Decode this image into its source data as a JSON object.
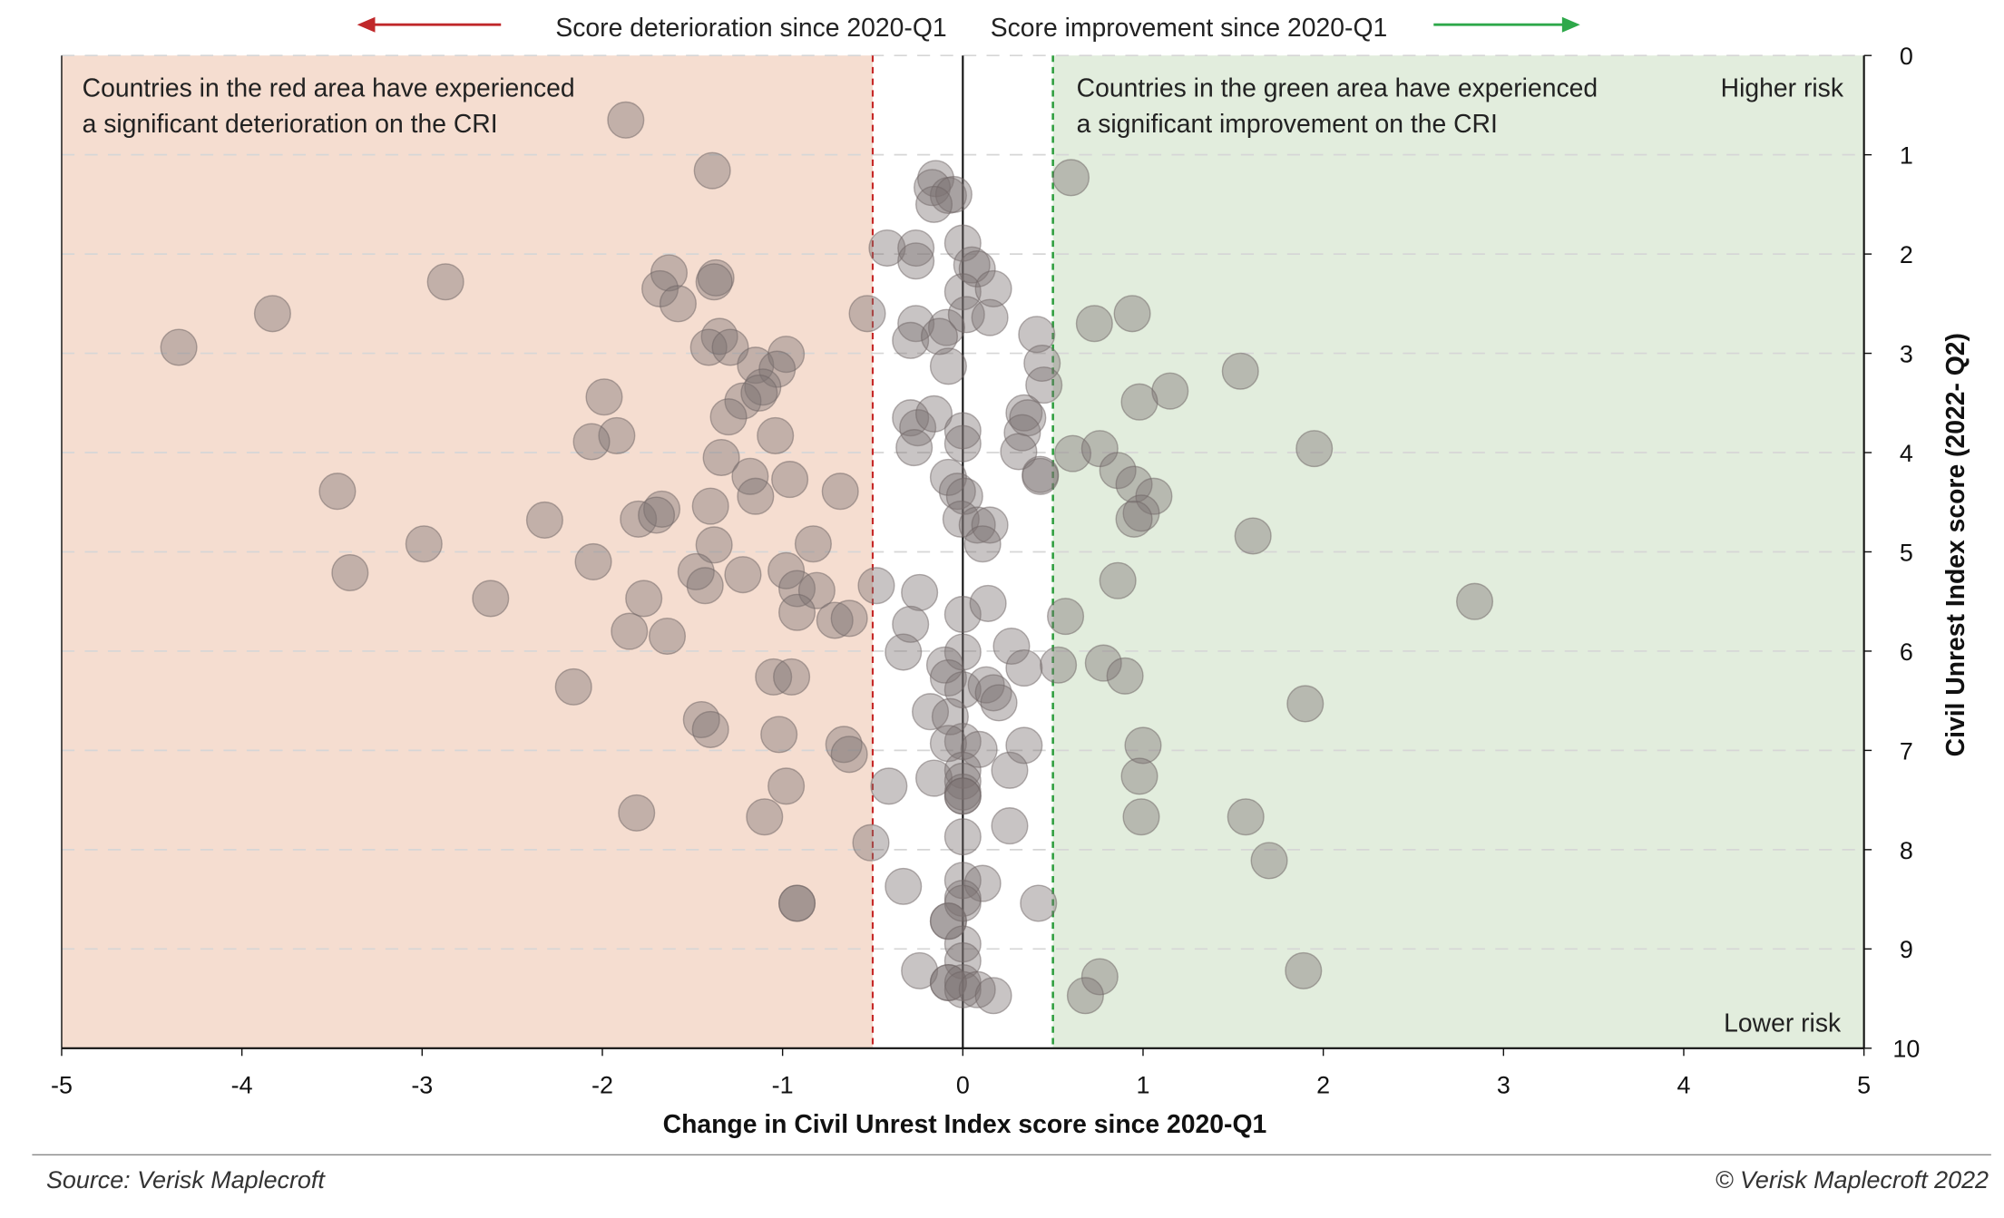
{
  "chart_data": {
    "type": "scatter",
    "title": "",
    "xlabel": "Change in Civil Unrest Index score since 2020-Q1",
    "ylabel": "Civil Unrest Index score (2022- Q2)",
    "xlim": [
      -5,
      5
    ],
    "ylim": [
      0,
      10
    ],
    "y_inverted": true,
    "y_axis_side": "right",
    "grid": "horizontal dashed",
    "xticks": [
      "-5",
      "-4",
      "-3",
      "-2",
      "-1",
      "0",
      "1",
      "2",
      "3",
      "4",
      "5"
    ],
    "yticks": [
      "0",
      "1",
      "2",
      "3",
      "4",
      "5",
      "6",
      "7",
      "8",
      "9",
      "10"
    ],
    "thresholds": [
      -0.5,
      0.5
    ],
    "header_left": "Score deterioration since 2020-Q1",
    "header_right": "Score improvement since 2020-Q1",
    "annotation_red": [
      "Countries in the red area have experienced",
      "a significant deterioration on the CRI"
    ],
    "annotation_green": [
      "Countries in the green area have experienced",
      "a significant improvement on the CRI"
    ],
    "higher_risk": "Higher risk",
    "lower_risk": "Lower risk",
    "source": "Source: Verisk Maplecroft",
    "copyright": "© Verisk Maplecroft 2022",
    "colors": {
      "red_area": "#f5ddd0",
      "green_area": "#e2eddd",
      "red_line": "#c62828",
      "green_line": "#2e9e3e",
      "red_arrow": "#c0282a",
      "green_arrow": "#2ea84a",
      "point": "#7d7373"
    },
    "points": [
      [
        -1.87,
        0.65
      ],
      [
        -1.39,
        1.16
      ],
      [
        -2.87,
        2.28
      ],
      [
        -3.83,
        2.6
      ],
      [
        -4.35,
        2.94
      ],
      [
        -1.63,
        2.19
      ],
      [
        -1.68,
        2.35
      ],
      [
        -1.58,
        2.5
      ],
      [
        -1.37,
        2.24
      ],
      [
        -1.38,
        2.28
      ],
      [
        -0.53,
        2.6
      ],
      [
        -1.35,
        2.83
      ],
      [
        -1.41,
        2.94
      ],
      [
        -1.29,
        2.94
      ],
      [
        -1.15,
        3.12
      ],
      [
        -0.98,
        3.01
      ],
      [
        -1.03,
        3.16
      ],
      [
        -1.11,
        3.34
      ],
      [
        -1.22,
        3.48
      ],
      [
        -1.13,
        3.4
      ],
      [
        -1.99,
        3.44
      ],
      [
        -1.3,
        3.64
      ],
      [
        -1.04,
        3.83
      ],
      [
        -1.92,
        3.83
      ],
      [
        -2.06,
        3.89
      ],
      [
        -1.34,
        4.05
      ],
      [
        -1.18,
        4.24
      ],
      [
        -0.96,
        4.27
      ],
      [
        -1.15,
        4.44
      ],
      [
        -0.68,
        4.39
      ],
      [
        -3.47,
        4.39
      ],
      [
        -2.32,
        4.68
      ],
      [
        -1.8,
        4.67
      ],
      [
        -1.67,
        4.57
      ],
      [
        -1.7,
        4.63
      ],
      [
        -1.4,
        4.54
      ],
      [
        -1.38,
        4.93
      ],
      [
        -0.83,
        4.92
      ],
      [
        -2.99,
        4.92
      ],
      [
        -3.4,
        5.21
      ],
      [
        -2.05,
        5.1
      ],
      [
        -1.48,
        5.2
      ],
      [
        -1.43,
        5.34
      ],
      [
        -1.22,
        5.23
      ],
      [
        -0.98,
        5.19
      ],
      [
        -0.92,
        5.37
      ],
      [
        -0.81,
        5.39
      ],
      [
        -0.92,
        5.61
      ],
      [
        -0.71,
        5.69
      ],
      [
        -0.63,
        5.67
      ],
      [
        -2.62,
        5.47
      ],
      [
        -1.77,
        5.47
      ],
      [
        -1.85,
        5.8
      ],
      [
        -1.64,
        5.85
      ],
      [
        -2.16,
        6.36
      ],
      [
        -1.05,
        6.26
      ],
      [
        -0.95,
        6.26
      ],
      [
        -1.45,
        6.69
      ],
      [
        -1.4,
        6.79
      ],
      [
        -1.02,
        6.84
      ],
      [
        -0.66,
        6.94
      ],
      [
        -0.63,
        7.04
      ],
      [
        -0.98,
        7.36
      ],
      [
        -1.81,
        7.63
      ],
      [
        -1.1,
        7.67
      ],
      [
        -0.51,
        7.93
      ],
      [
        -0.92,
        8.54
      ],
      [
        -0.92,
        8.54
      ],
      [
        -0.15,
        1.24
      ],
      [
        -0.17,
        1.33
      ],
      [
        -0.08,
        1.41
      ],
      [
        -0.05,
        1.4
      ],
      [
        -0.16,
        1.5
      ],
      [
        -0.42,
        1.94
      ],
      [
        -0.26,
        1.94
      ],
      [
        -0.26,
        2.07
      ],
      [
        0,
        1.89
      ],
      [
        0.05,
        2.11
      ],
      [
        0.08,
        2.15
      ],
      [
        0,
        2.38
      ],
      [
        0.17,
        2.35
      ],
      [
        -0.26,
        2.7
      ],
      [
        -0.09,
        2.74
      ],
      [
        0.02,
        2.61
      ],
      [
        0.15,
        2.64
      ],
      [
        -0.29,
        2.87
      ],
      [
        -0.13,
        2.83
      ],
      [
        -0.08,
        3.13
      ],
      [
        0.41,
        2.81
      ],
      [
        0.44,
        3.1
      ],
      [
        0.45,
        3.32
      ],
      [
        0.34,
        3.6
      ],
      [
        0.36,
        3.65
      ],
      [
        0.33,
        3.8
      ],
      [
        0.31,
        3.99
      ],
      [
        0.43,
        4.22
      ],
      [
        0.43,
        4.24
      ],
      [
        -0.29,
        3.65
      ],
      [
        -0.25,
        3.75
      ],
      [
        -0.16,
        3.61
      ],
      [
        -0.27,
        3.95
      ],
      [
        0,
        3.78
      ],
      [
        0,
        3.91
      ],
      [
        -0.08,
        4.25
      ],
      [
        -0.03,
        4.39
      ],
      [
        0.01,
        4.44
      ],
      [
        -0.01,
        4.67
      ],
      [
        0.08,
        4.73
      ],
      [
        0.15,
        4.73
      ],
      [
        0.11,
        4.92
      ],
      [
        -0.48,
        5.34
      ],
      [
        -0.24,
        5.41
      ],
      [
        -0.29,
        5.73
      ],
      [
        -0.33,
        6.01
      ],
      [
        0,
        5.63
      ],
      [
        0.14,
        5.52
      ],
      [
        0,
        6.01
      ],
      [
        0.27,
        5.95
      ],
      [
        0.34,
        6.17
      ],
      [
        -0.1,
        6.14
      ],
      [
        -0.08,
        6.27
      ],
      [
        0,
        6.39
      ],
      [
        0.13,
        6.34
      ],
      [
        0.17,
        6.42
      ],
      [
        0.2,
        6.52
      ],
      [
        -0.18,
        6.61
      ],
      [
        -0.07,
        6.66
      ],
      [
        0,
        6.91
      ],
      [
        -0.08,
        6.93
      ],
      [
        0.09,
        6.99
      ],
      [
        0.34,
        6.95
      ],
      [
        -0.41,
        7.36
      ],
      [
        -0.16,
        7.28
      ],
      [
        0,
        7.2
      ],
      [
        0,
        7.31
      ],
      [
        0,
        7.42
      ],
      [
        0,
        7.46
      ],
      [
        0,
        7.46
      ],
      [
        0.26,
        7.2
      ],
      [
        0.26,
        7.76
      ],
      [
        0,
        7.87
      ],
      [
        -0.33,
        8.37
      ],
      [
        0,
        8.31
      ],
      [
        0.11,
        8.34
      ],
      [
        0,
        8.49
      ],
      [
        -0.08,
        8.72
      ],
      [
        -0.08,
        8.72
      ],
      [
        0,
        8.54
      ],
      [
        0.42,
        8.54
      ],
      [
        0,
        8.95
      ],
      [
        0,
        9.12
      ],
      [
        -0.24,
        9.22
      ],
      [
        -0.08,
        9.34
      ],
      [
        -0.08,
        9.34
      ],
      [
        0,
        9.34
      ],
      [
        0,
        9.41
      ],
      [
        0.08,
        9.41
      ],
      [
        0.17,
        9.47
      ],
      [
        0.6,
        1.23
      ],
      [
        0.73,
        2.7
      ],
      [
        0.94,
        2.6
      ],
      [
        1.54,
        3.18
      ],
      [
        1.15,
        3.38
      ],
      [
        0.98,
        3.49
      ],
      [
        1.95,
        3.96
      ],
      [
        0.61,
        4.01
      ],
      [
        0.76,
        3.96
      ],
      [
        0.86,
        4.18
      ],
      [
        0.95,
        4.32
      ],
      [
        1.06,
        4.44
      ],
      [
        0.99,
        4.61
      ],
      [
        0.95,
        4.67
      ],
      [
        1.61,
        4.84
      ],
      [
        0.86,
        5.29
      ],
      [
        2.84,
        5.5
      ],
      [
        0.57,
        5.65
      ],
      [
        0.53,
        6.14
      ],
      [
        0.78,
        6.12
      ],
      [
        0.9,
        6.25
      ],
      [
        1.9,
        6.53
      ],
      [
        1.0,
        6.95
      ],
      [
        0.98,
        7.26
      ],
      [
        0.99,
        7.67
      ],
      [
        1.57,
        7.67
      ],
      [
        1.7,
        8.11
      ],
      [
        1.89,
        9.22
      ],
      [
        0.76,
        9.28
      ],
      [
        0.68,
        9.47
      ]
    ]
  }
}
